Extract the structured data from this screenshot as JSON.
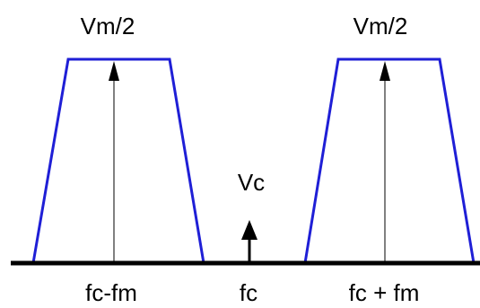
{
  "diagram": {
    "colors": {
      "band_outline": "#1f1fd6",
      "arrow": "#000000",
      "axis": "#000000"
    },
    "bands": [
      {
        "id": "lower-sideband",
        "amplitude_label": "Vm/2",
        "frequency_label": "fc-fm"
      },
      {
        "id": "upper-sideband",
        "amplitude_label": "Vm/2",
        "frequency_label": "fc + fm"
      }
    ],
    "carrier": {
      "amplitude_label": "Vc",
      "frequency_label": "fc"
    }
  }
}
